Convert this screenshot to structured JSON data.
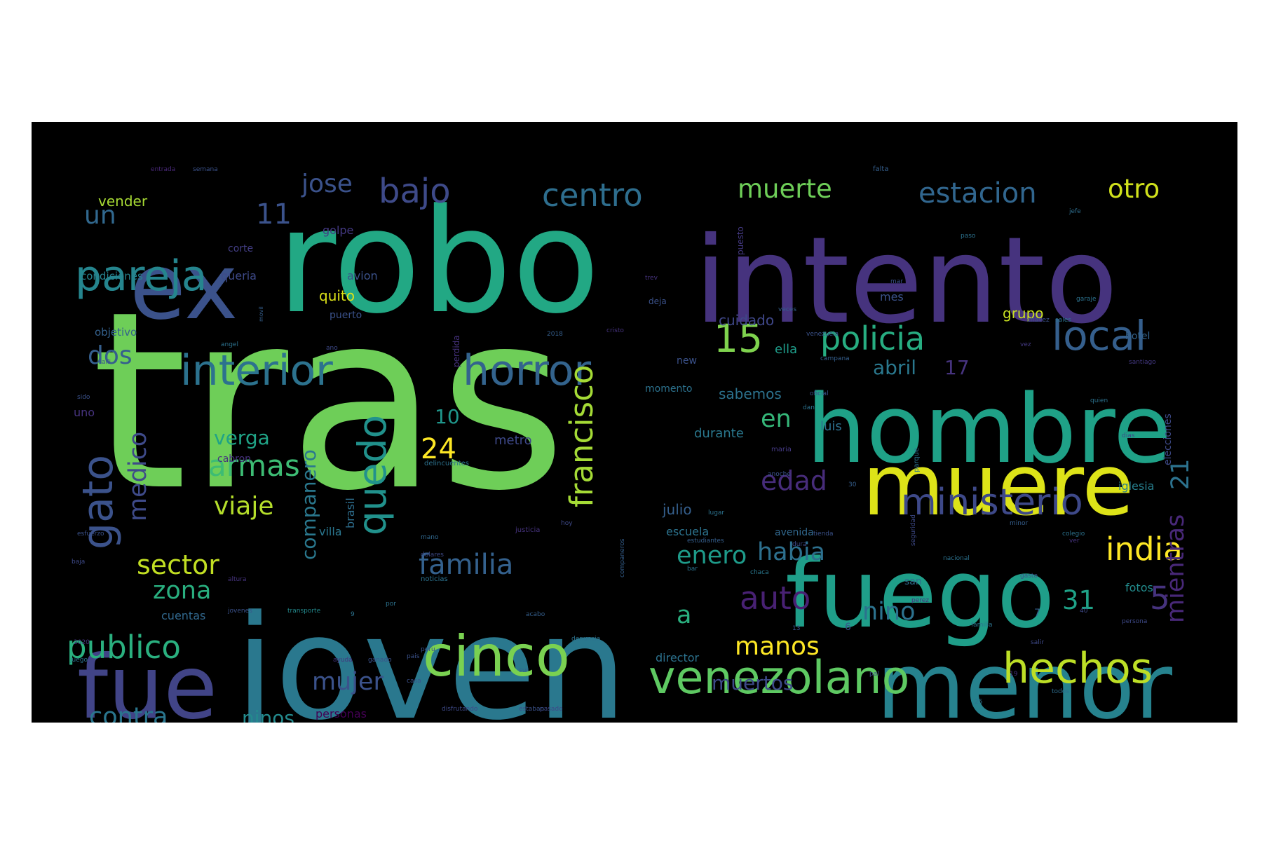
{
  "background_color": "#000000",
  "palette": [
    "#440154",
    "#3b528b",
    "#21918c",
    "#5ec962",
    "#fde725"
  ],
  "words": [
    {
      "text": "tras",
      "color": "#6ece58"
    },
    {
      "text": "robo",
      "color": "#22a884"
    },
    {
      "text": "joven",
      "color": "#2a788e"
    },
    {
      "text": "intento",
      "color": "#46337e"
    },
    {
      "text": "hombre",
      "color": "#1fa187"
    },
    {
      "text": "muere",
      "color": "#dde318"
    },
    {
      "text": "fuego",
      "color": "#1f9e89"
    },
    {
      "text": "menor",
      "color": "#26828e"
    },
    {
      "text": "ex",
      "color": "#3b528b"
    },
    {
      "text": "fue",
      "color": "#414487"
    },
    {
      "text": "cinco",
      "color": "#7ad151"
    },
    {
      "text": "venezolano",
      "color": "#5ec962"
    },
    {
      "text": "hechos",
      "color": "#bddf26"
    },
    {
      "text": "interior",
      "color": "#2c728e"
    },
    {
      "text": "horror",
      "color": "#33638d"
    },
    {
      "text": "pareja",
      "color": "#25858e"
    },
    {
      "text": "gato",
      "color": "#3b528b"
    },
    {
      "text": "quedo",
      "color": "#21918c"
    },
    {
      "text": "ministerio",
      "color": "#3e4989"
    },
    {
      "text": "local",
      "color": "#355f8d"
    },
    {
      "text": "policia",
      "color": "#27ad81"
    },
    {
      "text": "centro",
      "color": "#2e6e8e"
    },
    {
      "text": "bajo",
      "color": "#3e4a89"
    },
    {
      "text": "francisco",
      "color": "#a5db36"
    },
    {
      "text": "publico",
      "color": "#2ab07f"
    },
    {
      "text": "india",
      "color": "#fde725"
    },
    {
      "text": "familia",
      "color": "#34618d"
    },
    {
      "text": "armas",
      "color": "#3dbc74"
    },
    {
      "text": "sector",
      "color": "#c2df23"
    },
    {
      "text": "auto",
      "color": "#482173"
    },
    {
      "text": "estacion",
      "color": "#31668e"
    },
    {
      "text": "muerte",
      "color": "#6ece58"
    },
    {
      "text": "otro",
      "color": "#d0e11c"
    },
    {
      "text": "15",
      "color": "#7fd34e"
    },
    {
      "text": "mientras",
      "color": "#482878"
    },
    {
      "text": "medico",
      "color": "#3e4a89"
    },
    {
      "text": "zona",
      "color": "#29af7f"
    },
    {
      "text": "nino",
      "color": "#2c728e"
    },
    {
      "text": "habia",
      "color": "#2d708e"
    },
    {
      "text": "contra",
      "color": "#2a768e"
    },
    {
      "text": "mujer",
      "color": "#3b528b"
    },
    {
      "text": "manos",
      "color": "#fde725"
    },
    {
      "text": "viaje",
      "color": "#b5de2b"
    },
    {
      "text": "enero",
      "color": "#1e9b8a"
    },
    {
      "text": "companero",
      "color": "#2a788e"
    },
    {
      "text": "jose",
      "color": "#3b528b"
    },
    {
      "text": "un",
      "color": "#31688e"
    },
    {
      "text": "dos",
      "color": "#355f8d"
    },
    {
      "text": "11",
      "color": "#3b528b"
    },
    {
      "text": "24",
      "color": "#fde725"
    },
    {
      "text": "edad",
      "color": "#472c7a"
    },
    {
      "text": "en",
      "color": "#35b779"
    },
    {
      "text": "31",
      "color": "#1fa187"
    },
    {
      "text": "5",
      "color": "#46337e"
    },
    {
      "text": "21",
      "color": "#2c728e"
    },
    {
      "text": "verga",
      "color": "#20a386"
    },
    {
      "text": "10",
      "color": "#1f968b"
    },
    {
      "text": "a",
      "color": "#2ab07f"
    },
    {
      "text": "muertos",
      "color": "#3e4a89"
    },
    {
      "text": "abril",
      "color": "#2a788e"
    },
    {
      "text": "17",
      "color": "#46337e"
    },
    {
      "text": "ninos",
      "color": "#238a8d"
    },
    {
      "text": "cuidado",
      "color": "#3f4788"
    },
    {
      "text": "sabemos",
      "color": "#2c728e"
    },
    {
      "text": "ella",
      "color": "#1e9c89"
    },
    {
      "text": "grupo",
      "color": "#c8e020"
    },
    {
      "text": "quito",
      "color": "#dde318"
    },
    {
      "text": "condiciones",
      "color": "#26828e"
    },
    {
      "text": "objetivo",
      "color": "#34618d"
    },
    {
      "text": "vender",
      "color": "#a8db34"
    },
    {
      "text": "luis",
      "color": "#2d708e"
    },
    {
      "text": "julio",
      "color": "#355f8d"
    },
    {
      "text": "metro",
      "color": "#3e4989"
    },
    {
      "text": "durante",
      "color": "#2a788e"
    },
    {
      "text": "escuela",
      "color": "#2c738e"
    },
    {
      "text": "villa",
      "color": "#2a768e"
    },
    {
      "text": "cuentas",
      "color": "#31688e"
    },
    {
      "text": "iglesia",
      "color": "#277f8e"
    },
    {
      "text": "fotos",
      "color": "#228c8d"
    },
    {
      "text": "elecciones",
      "color": "#3e4a89"
    },
    {
      "text": "director",
      "color": "#2c728e"
    },
    {
      "text": "brasil",
      "color": "#2e6e8e"
    },
    {
      "text": "golpe",
      "color": "#443983"
    },
    {
      "text": "avion",
      "color": "#3b528b"
    },
    {
      "text": "cabron",
      "color": "#46327e"
    },
    {
      "text": "personas",
      "color": "#440154"
    },
    {
      "text": "hotel",
      "color": "#33638d"
    },
    {
      "text": "new",
      "color": "#3b528b"
    },
    {
      "text": "momento",
      "color": "#2c728e"
    },
    {
      "text": "avenida",
      "color": "#31688e"
    },
    {
      "text": "mes",
      "color": "#3b528b"
    },
    {
      "text": "san",
      "color": "#2e6e8e"
    },
    {
      "text": "queria",
      "color": "#3e4a89"
    },
    {
      "text": "corte",
      "color": "#433e85"
    },
    {
      "text": "deja",
      "color": "#3b528b"
    },
    {
      "text": "puesto",
      "color": "#443983"
    },
    {
      "text": "puerto",
      "color": "#3b528b"
    },
    {
      "text": "perdida",
      "color": "#46327e"
    },
    {
      "text": "falta",
      "color": "#355f8d"
    },
    {
      "text": "entrada",
      "color": "#482878"
    },
    {
      "text": "semana",
      "color": "#3b528b"
    },
    {
      "text": "delincuentes",
      "color": "#2c728e"
    },
    {
      "text": "dolares",
      "color": "#3e4a89"
    },
    {
      "text": "mano",
      "color": "#31688e"
    },
    {
      "text": "justicia",
      "color": "#46337e"
    },
    {
      "text": "noticias",
      "color": "#2c728e"
    },
    {
      "text": "estudiantes",
      "color": "#355f8d"
    },
    {
      "text": "transporte",
      "color": "#238a8d"
    },
    {
      "text": "esfuerzo",
      "color": "#3b528b"
    },
    {
      "text": "maria",
      "color": "#443983"
    },
    {
      "text": "anoche",
      "color": "#3b528b"
    },
    {
      "text": "pasado",
      "color": "#3e4989"
    },
    {
      "text": "nacional",
      "color": "#2c728e"
    },
    {
      "text": "companeros",
      "color": "#355f8d"
    },
    {
      "text": "persona",
      "color": "#3e4a89"
    },
    {
      "text": "santiago",
      "color": "#443983"
    },
    {
      "text": "denuncia",
      "color": "#2c728e"
    },
    {
      "text": "disfrutando",
      "color": "#3e4a89"
    },
    {
      "text": "estaban",
      "color": "#3b528b"
    },
    {
      "text": "todos",
      "color": "#2e6e8e"
    },
    {
      "text": "ayuda",
      "color": "#46337e"
    },
    {
      "text": "ganado",
      "color": "#3b528b"
    },
    {
      "text": "parque",
      "color": "#2c728e"
    },
    {
      "text": "seguridad",
      "color": "#3e4a89"
    },
    {
      "text": "campana",
      "color": "#355f8d"
    },
    {
      "text": "colegio",
      "color": "#2c728e"
    },
    {
      "text": "peru",
      "color": "#3b528b"
    },
    {
      "text": "chaca",
      "color": "#2a788e"
    },
    {
      "text": "chavez",
      "color": "#3b528b"
    },
    {
      "text": "sales",
      "color": "#2c728e"
    },
    {
      "text": "salir",
      "color": "#3e4a89"
    },
    {
      "text": "2018",
      "color": "#355f8d"
    },
    {
      "text": "2020",
      "color": "#46337e"
    },
    {
      "text": "juego",
      "color": "#2c728e"
    },
    {
      "text": "sido",
      "color": "#3b528b"
    },
    {
      "text": "baja",
      "color": "#3e4a89"
    },
    {
      "text": "jefe",
      "color": "#2e6e8e"
    },
    {
      "text": "trev",
      "color": "#46337e"
    },
    {
      "text": "mar",
      "color": "#3b528b"
    },
    {
      "text": "garaje",
      "color": "#2c728e"
    },
    {
      "text": "movil",
      "color": "#355f8d"
    },
    {
      "text": "venezuela",
      "color": "#3b528b"
    },
    {
      "text": "vez",
      "color": "#443983"
    },
    {
      "text": "bar",
      "color": "#2c728e"
    },
    {
      "text": "ano",
      "color": "#3e4a89"
    },
    {
      "text": "angel",
      "color": "#2c728e"
    },
    {
      "text": "alli",
      "color": "#3b528b"
    },
    {
      "text": "acabo",
      "color": "#355f8d"
    },
    {
      "text": "altura",
      "color": "#46337e"
    },
    {
      "text": "jovenes",
      "color": "#3b528b"
    },
    {
      "text": "quien",
      "color": "#2c728e"
    },
    {
      "text": "dias",
      "color": "#3e4a89"
    },
    {
      "text": "veces",
      "color": "#355f8d"
    },
    {
      "text": "oficial",
      "color": "#3b528b"
    },
    {
      "text": "paso",
      "color": "#2c728e"
    },
    {
      "text": "perez",
      "color": "#46337e"
    },
    {
      "text": "pais",
      "color": "#3b528b"
    },
    {
      "text": "dan",
      "color": "#2c728e"
    },
    {
      "text": "dura",
      "color": "#3e4a89"
    },
    {
      "text": "sur",
      "color": "#355f8d"
    },
    {
      "text": "casa",
      "color": "#3b528b"
    },
    {
      "text": "por",
      "color": "#2c728e"
    },
    {
      "text": "uno",
      "color": "#46337e"
    },
    {
      "text": "6",
      "color": "#3b528b"
    },
    {
      "text": "7",
      "color": "#355f8d"
    },
    {
      "text": "9",
      "color": "#2c728e"
    },
    {
      "text": "40",
      "color": "#3e4a89"
    },
    {
      "text": "19",
      "color": "#46337e"
    },
    {
      "text": "13",
      "color": "#3b528b"
    },
    {
      "text": "25",
      "color": "#2c728e"
    },
    {
      "text": "30",
      "color": "#355f8d"
    },
    {
      "text": "gasto",
      "color": "#3b528b"
    },
    {
      "text": "cristo",
      "color": "#46337e"
    },
    {
      "text": "familia",
      "color": "#2c728e"
    },
    {
      "text": "pal",
      "color": "#3e4a89"
    },
    {
      "text": "minor",
      "color": "#355f8d"
    },
    {
      "text": "tienda",
      "color": "#3b528b"
    },
    {
      "text": "lugar",
      "color": "#2c728e"
    },
    {
      "text": "hoy",
      "color": "#3e4a89"
    },
    {
      "text": "ver",
      "color": "#46337e"
    },
    {
      "text": "ayer",
      "color": "#3b528b"
    }
  ]
}
